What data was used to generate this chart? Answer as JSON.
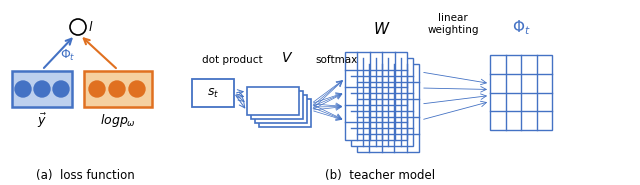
{
  "bg_color": "#ffffff",
  "blue_color": "#4472C4",
  "orange_color": "#E07020",
  "fig_width": 6.4,
  "fig_height": 1.85,
  "caption_a": "(a)  loss function",
  "caption_b": "(b)  teacher model",
  "label_l": "$l$",
  "label_phi": "$\\Phi_t$",
  "label_y": "$\\vec{y}$",
  "label_logp": "$logp_\\omega$",
  "label_st": "$s_t$",
  "label_V": "$V$",
  "label_softmax": "softmax",
  "label_W": "$W$",
  "label_linear": "linear\nweighting",
  "label_phi_t": "$\\Phi_t$"
}
